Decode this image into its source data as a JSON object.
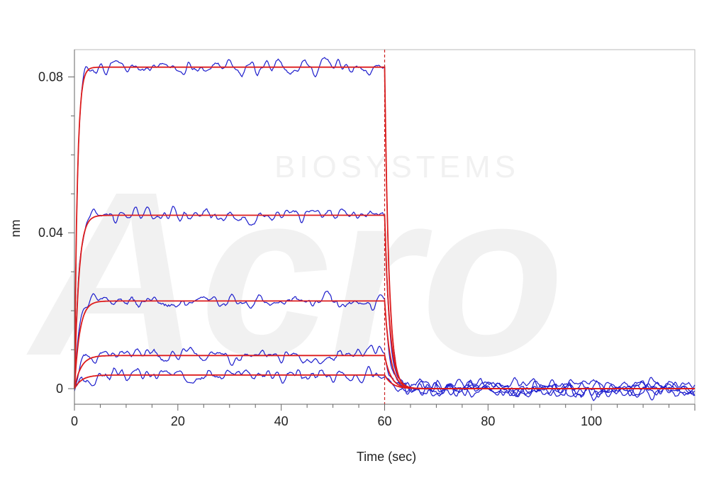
{
  "chart_data": {
    "type": "line",
    "title": "",
    "xlabel": "Time (sec)",
    "ylabel": "nm",
    "xlim": [
      0,
      120
    ],
    "ylim": [
      -0.004,
      0.087
    ],
    "xticks": [
      {
        "value": 0,
        "label": "0"
      },
      {
        "value": 20,
        "label": "20"
      },
      {
        "value": 40,
        "label": "40"
      },
      {
        "value": 60,
        "label": "60"
      },
      {
        "value": 80,
        "label": "80"
      },
      {
        "value": 100,
        "label": "100"
      }
    ],
    "yticks": [
      {
        "value": 0,
        "label": "0"
      },
      {
        "value": 0.04,
        "label": "0.04"
      },
      {
        "value": 0.08,
        "label": "0.08"
      }
    ],
    "dissociation_start": 60,
    "association_start": 0,
    "measured_color": "#1c1ccc",
    "fit_color": "#dd1c1c",
    "marker_color": "#cc2222",
    "series": [
      {
        "plateau": 0.0825,
        "kon": 1.8,
        "koff": 1.2,
        "seed": 11
      },
      {
        "plateau": 0.0445,
        "kon": 1.2,
        "koff": 1.0,
        "seed": 23
      },
      {
        "plateau": 0.0225,
        "kon": 1.0,
        "koff": 0.9,
        "seed": 37
      },
      {
        "plateau": 0.0085,
        "kon": 0.8,
        "koff": 0.8,
        "seed": 51
      },
      {
        "plateau": 0.0035,
        "kon": 0.7,
        "koff": 0.7,
        "seed": 67
      }
    ],
    "legend": "none",
    "grid": false,
    "watermark": {
      "text": "BIOSYSTEMS",
      "logo": "Acro"
    }
  }
}
